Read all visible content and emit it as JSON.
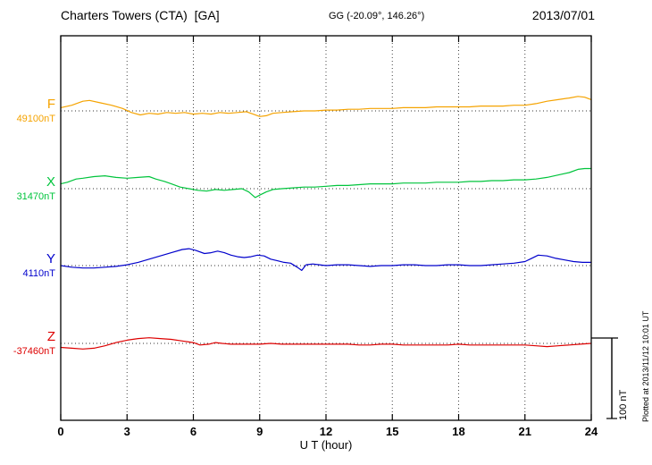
{
  "header": {
    "station": "Charters Towers (CTA)  [GA]",
    "coords": "GG (-20.09°, 146.26°)",
    "date": "2013/07/01"
  },
  "axis": {
    "xlabel": "U T (hour)"
  },
  "scale_bar": {
    "label": "100 nT",
    "span_nT": 100
  },
  "footer_note": "Plotted at 2013/11/12 10:01 UT",
  "chart_data": {
    "type": "line",
    "title": "Charters Towers (CTA) [GA] magnetogram",
    "date": "2013/07/01",
    "xlabel": "U T (hour)",
    "x_range": [
      0,
      24
    ],
    "x_ticks": [
      0,
      3,
      6,
      9,
      12,
      15,
      18,
      21,
      24
    ],
    "x_gridlines": [
      3,
      6,
      9,
      12,
      15,
      18,
      21
    ],
    "grid": "dotted",
    "scale_nT_per_bar": 100,
    "legend_position": "left-margin",
    "series": [
      {
        "name": "F",
        "baseline_label": "49100nT",
        "baseline_nT": 49100,
        "color": "#f5a300",
        "points": [
          [
            0,
            4
          ],
          [
            0.5,
            7
          ],
          [
            1,
            12
          ],
          [
            1.3,
            13
          ],
          [
            1.8,
            10
          ],
          [
            2.3,
            7
          ],
          [
            2.8,
            3
          ],
          [
            3.2,
            -2
          ],
          [
            3.6,
            -5
          ],
          [
            4,
            -3
          ],
          [
            4.4,
            -4
          ],
          [
            4.8,
            -2
          ],
          [
            5.2,
            -3
          ],
          [
            5.6,
            -2
          ],
          [
            6,
            -4
          ],
          [
            6.4,
            -3
          ],
          [
            6.8,
            -4
          ],
          [
            7.2,
            -2
          ],
          [
            7.6,
            -3
          ],
          [
            8,
            -2
          ],
          [
            8.4,
            -1
          ],
          [
            8.7,
            -4
          ],
          [
            9,
            -7
          ],
          [
            9.3,
            -6
          ],
          [
            9.6,
            -3
          ],
          [
            10,
            -2
          ],
          [
            10.5,
            -1
          ],
          [
            11,
            0
          ],
          [
            11.5,
            0
          ],
          [
            12,
            1
          ],
          [
            12.5,
            1
          ],
          [
            13,
            2
          ],
          [
            13.5,
            2
          ],
          [
            14,
            3
          ],
          [
            14.5,
            3
          ],
          [
            15,
            3
          ],
          [
            15.5,
            4
          ],
          [
            16,
            4
          ],
          [
            16.5,
            4
          ],
          [
            17,
            5
          ],
          [
            17.5,
            5
          ],
          [
            18,
            5
          ],
          [
            18.5,
            5
          ],
          [
            19,
            6
          ],
          [
            19.5,
            6
          ],
          [
            20,
            6
          ],
          [
            20.5,
            7
          ],
          [
            21,
            7
          ],
          [
            21.5,
            9
          ],
          [
            22,
            12
          ],
          [
            22.5,
            14
          ],
          [
            23,
            16
          ],
          [
            23.4,
            18
          ],
          [
            23.7,
            17
          ],
          [
            24,
            14
          ]
        ]
      },
      {
        "name": "X",
        "baseline_label": "31470nT",
        "baseline_nT": 31470,
        "color": "#00c43c",
        "points": [
          [
            0,
            6
          ],
          [
            0.3,
            8
          ],
          [
            0.7,
            12
          ],
          [
            1,
            13
          ],
          [
            1.5,
            15
          ],
          [
            2,
            16
          ],
          [
            2.5,
            14
          ],
          [
            3,
            13
          ],
          [
            3.5,
            14
          ],
          [
            4,
            15
          ],
          [
            4.3,
            12
          ],
          [
            4.7,
            9
          ],
          [
            5,
            6
          ],
          [
            5.4,
            2
          ],
          [
            5.8,
            0
          ],
          [
            6.2,
            -2
          ],
          [
            6.6,
            -3
          ],
          [
            7,
            -1
          ],
          [
            7.4,
            -2
          ],
          [
            7.8,
            -1
          ],
          [
            8.2,
            0
          ],
          [
            8.5,
            -4
          ],
          [
            8.8,
            -11
          ],
          [
            9,
            -8
          ],
          [
            9.3,
            -4
          ],
          [
            9.6,
            -1
          ],
          [
            10,
            0
          ],
          [
            10.5,
            1
          ],
          [
            11,
            2
          ],
          [
            11.5,
            2
          ],
          [
            12,
            3
          ],
          [
            12.5,
            4
          ],
          [
            13,
            4
          ],
          [
            13.5,
            5
          ],
          [
            14,
            6
          ],
          [
            14.5,
            6
          ],
          [
            15,
            6
          ],
          [
            15.5,
            7
          ],
          [
            16,
            7
          ],
          [
            16.5,
            7
          ],
          [
            17,
            8
          ],
          [
            17.5,
            8
          ],
          [
            18,
            8
          ],
          [
            18.5,
            9
          ],
          [
            19,
            9
          ],
          [
            19.5,
            10
          ],
          [
            20,
            10
          ],
          [
            20.5,
            11
          ],
          [
            21,
            11
          ],
          [
            21.5,
            12
          ],
          [
            22,
            14
          ],
          [
            22.5,
            17
          ],
          [
            23,
            20
          ],
          [
            23.4,
            24
          ],
          [
            23.7,
            25
          ],
          [
            24,
            25
          ]
        ]
      },
      {
        "name": "Y",
        "baseline_label": "4110nT",
        "baseline_nT": 4110,
        "color": "#0000cc",
        "points": [
          [
            0,
            0
          ],
          [
            0.5,
            -2
          ],
          [
            1,
            -3
          ],
          [
            1.5,
            -3
          ],
          [
            2,
            -2
          ],
          [
            2.5,
            -1
          ],
          [
            3,
            1
          ],
          [
            3.5,
            4
          ],
          [
            4,
            8
          ],
          [
            4.5,
            12
          ],
          [
            5,
            16
          ],
          [
            5.5,
            20
          ],
          [
            5.8,
            21
          ],
          [
            6.1,
            19
          ],
          [
            6.5,
            15
          ],
          [
            6.8,
            16
          ],
          [
            7.1,
            18
          ],
          [
            7.4,
            16
          ],
          [
            7.7,
            13
          ],
          [
            8,
            11
          ],
          [
            8.3,
            10
          ],
          [
            8.6,
            11
          ],
          [
            8.9,
            13
          ],
          [
            9.2,
            12
          ],
          [
            9.5,
            8
          ],
          [
            9.8,
            6
          ],
          [
            10.1,
            4
          ],
          [
            10.4,
            3
          ],
          [
            10.7,
            -2
          ],
          [
            10.9,
            -6
          ],
          [
            11.1,
            1
          ],
          [
            11.4,
            2
          ],
          [
            11.7,
            1
          ],
          [
            12,
            0
          ],
          [
            12.5,
            1
          ],
          [
            13,
            1
          ],
          [
            13.5,
            0
          ],
          [
            14,
            -1
          ],
          [
            14.5,
            0
          ],
          [
            15,
            0
          ],
          [
            15.5,
            1
          ],
          [
            16,
            1
          ],
          [
            16.5,
            0
          ],
          [
            17,
            0
          ],
          [
            17.5,
            1
          ],
          [
            18,
            1
          ],
          [
            18.5,
            0
          ],
          [
            19,
            0
          ],
          [
            19.5,
            1
          ],
          [
            20,
            2
          ],
          [
            20.5,
            3
          ],
          [
            21,
            5
          ],
          [
            21.3,
            9
          ],
          [
            21.6,
            13
          ],
          [
            22,
            12
          ],
          [
            22.4,
            9
          ],
          [
            22.8,
            7
          ],
          [
            23.2,
            5
          ],
          [
            23.6,
            4
          ],
          [
            24,
            4
          ]
        ]
      },
      {
        "name": "Z",
        "baseline_label": "-37460nT",
        "baseline_nT": -37460,
        "color": "#dd0000",
        "points": [
          [
            0,
            -5
          ],
          [
            0.5,
            -6
          ],
          [
            1,
            -7
          ],
          [
            1.5,
            -6
          ],
          [
            2,
            -3
          ],
          [
            2.5,
            1
          ],
          [
            3,
            4
          ],
          [
            3.5,
            6
          ],
          [
            4,
            7
          ],
          [
            4.5,
            6
          ],
          [
            5,
            5
          ],
          [
            5.5,
            3
          ],
          [
            6,
            1
          ],
          [
            6.3,
            -2
          ],
          [
            6.7,
            -1
          ],
          [
            7,
            1
          ],
          [
            7.3,
            0
          ],
          [
            7.7,
            -1
          ],
          [
            8,
            -1
          ],
          [
            8.5,
            -1
          ],
          [
            9,
            -1
          ],
          [
            9.5,
            0
          ],
          [
            10,
            -1
          ],
          [
            10.5,
            -1
          ],
          [
            11,
            -1
          ],
          [
            11.5,
            -1
          ],
          [
            12,
            -1
          ],
          [
            12.5,
            -1
          ],
          [
            13,
            -1
          ],
          [
            13.5,
            -2
          ],
          [
            14,
            -2
          ],
          [
            14.5,
            -1
          ],
          [
            15,
            -1
          ],
          [
            15.5,
            -2
          ],
          [
            16,
            -2
          ],
          [
            16.5,
            -2
          ],
          [
            17,
            -2
          ],
          [
            17.5,
            -2
          ],
          [
            18,
            -1
          ],
          [
            18.5,
            -2
          ],
          [
            19,
            -2
          ],
          [
            19.5,
            -2
          ],
          [
            20,
            -2
          ],
          [
            20.5,
            -2
          ],
          [
            21,
            -2
          ],
          [
            21.5,
            -3
          ],
          [
            22,
            -4
          ],
          [
            22.5,
            -3
          ],
          [
            23,
            -2
          ],
          [
            23.5,
            -1
          ],
          [
            24,
            0
          ]
        ]
      }
    ]
  }
}
